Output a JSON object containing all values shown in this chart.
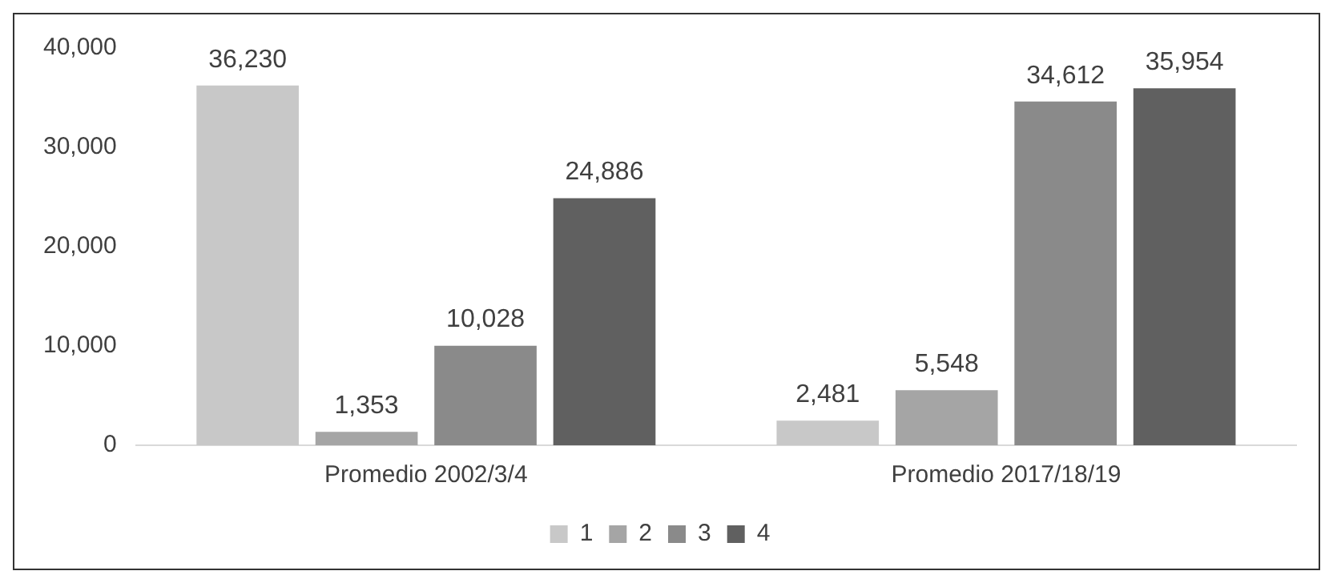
{
  "chart_data": {
    "type": "bar",
    "categories": [
      "Promedio 2002/3/4",
      "Promedio 2017/18/19"
    ],
    "series": [
      {
        "name": "1",
        "color": "#c8c8c8",
        "values": [
          36230,
          2481
        ],
        "value_labels": [
          "36,230",
          "2,481"
        ]
      },
      {
        "name": "2",
        "color": "#a5a5a5",
        "values": [
          1353,
          5548
        ],
        "value_labels": [
          "1,353",
          "5,548"
        ]
      },
      {
        "name": "3",
        "color": "#8a8a8a",
        "values": [
          10028,
          34612
        ],
        "value_labels": [
          "10,028",
          "34,612"
        ]
      },
      {
        "name": "4",
        "color": "#606060",
        "values": [
          24886,
          35954
        ],
        "value_labels": [
          "24,886",
          "35,954"
        ]
      }
    ],
    "ylim": [
      0,
      40000
    ],
    "yticks": [
      0,
      {
        "value": 10000,
        "label": "10,000"
      },
      {
        "value": 20000,
        "label": "20,000"
      },
      {
        "value": 30000,
        "label": "30,000"
      },
      {
        "value": 40000,
        "label": "40,000"
      }
    ],
    "grid": false,
    "legend": "bottom"
  }
}
